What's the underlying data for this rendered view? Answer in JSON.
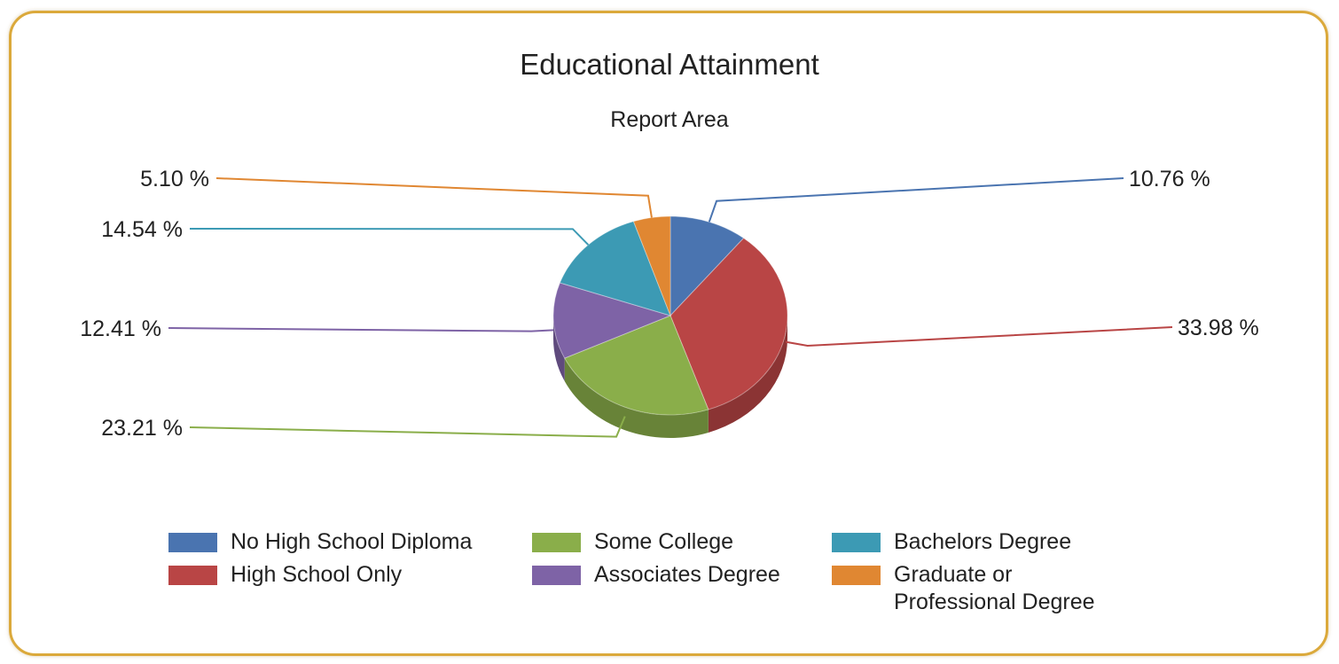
{
  "chart_data": {
    "type": "pie",
    "title": "Educational Attainment",
    "subtitle": "Report Area",
    "categories": [
      "No High School Diploma",
      "High School Only",
      "Some College",
      "Associates Degree",
      "Bachelors Degree",
      "Graduate or Professional Degree"
    ],
    "values": [
      10.76,
      33.98,
      23.21,
      12.41,
      14.54,
      5.1
    ],
    "data_labels": [
      "10.76 %",
      "33.98 %",
      "23.21 %",
      "12.41 %",
      "14.54 %",
      "5.10 %"
    ],
    "colors": [
      "#4a74b0",
      "#b94545",
      "#8aae4a",
      "#7e63a6",
      "#3c9ab4",
      "#e08732"
    ],
    "legend_position": "bottom",
    "style": "3d"
  },
  "legend": [
    {
      "label": "No High School Diploma",
      "color": "#4a74b0"
    },
    {
      "label": "High School Only",
      "color": "#b94545"
    },
    {
      "label": "Some College",
      "color": "#8aae4a"
    },
    {
      "label": "Associates Degree",
      "color": "#7e63a6"
    },
    {
      "label": "Bachelors Degree",
      "color": "#3c9ab4"
    },
    {
      "label": "Graduate or Professional Degree",
      "color": "#e08732"
    }
  ]
}
